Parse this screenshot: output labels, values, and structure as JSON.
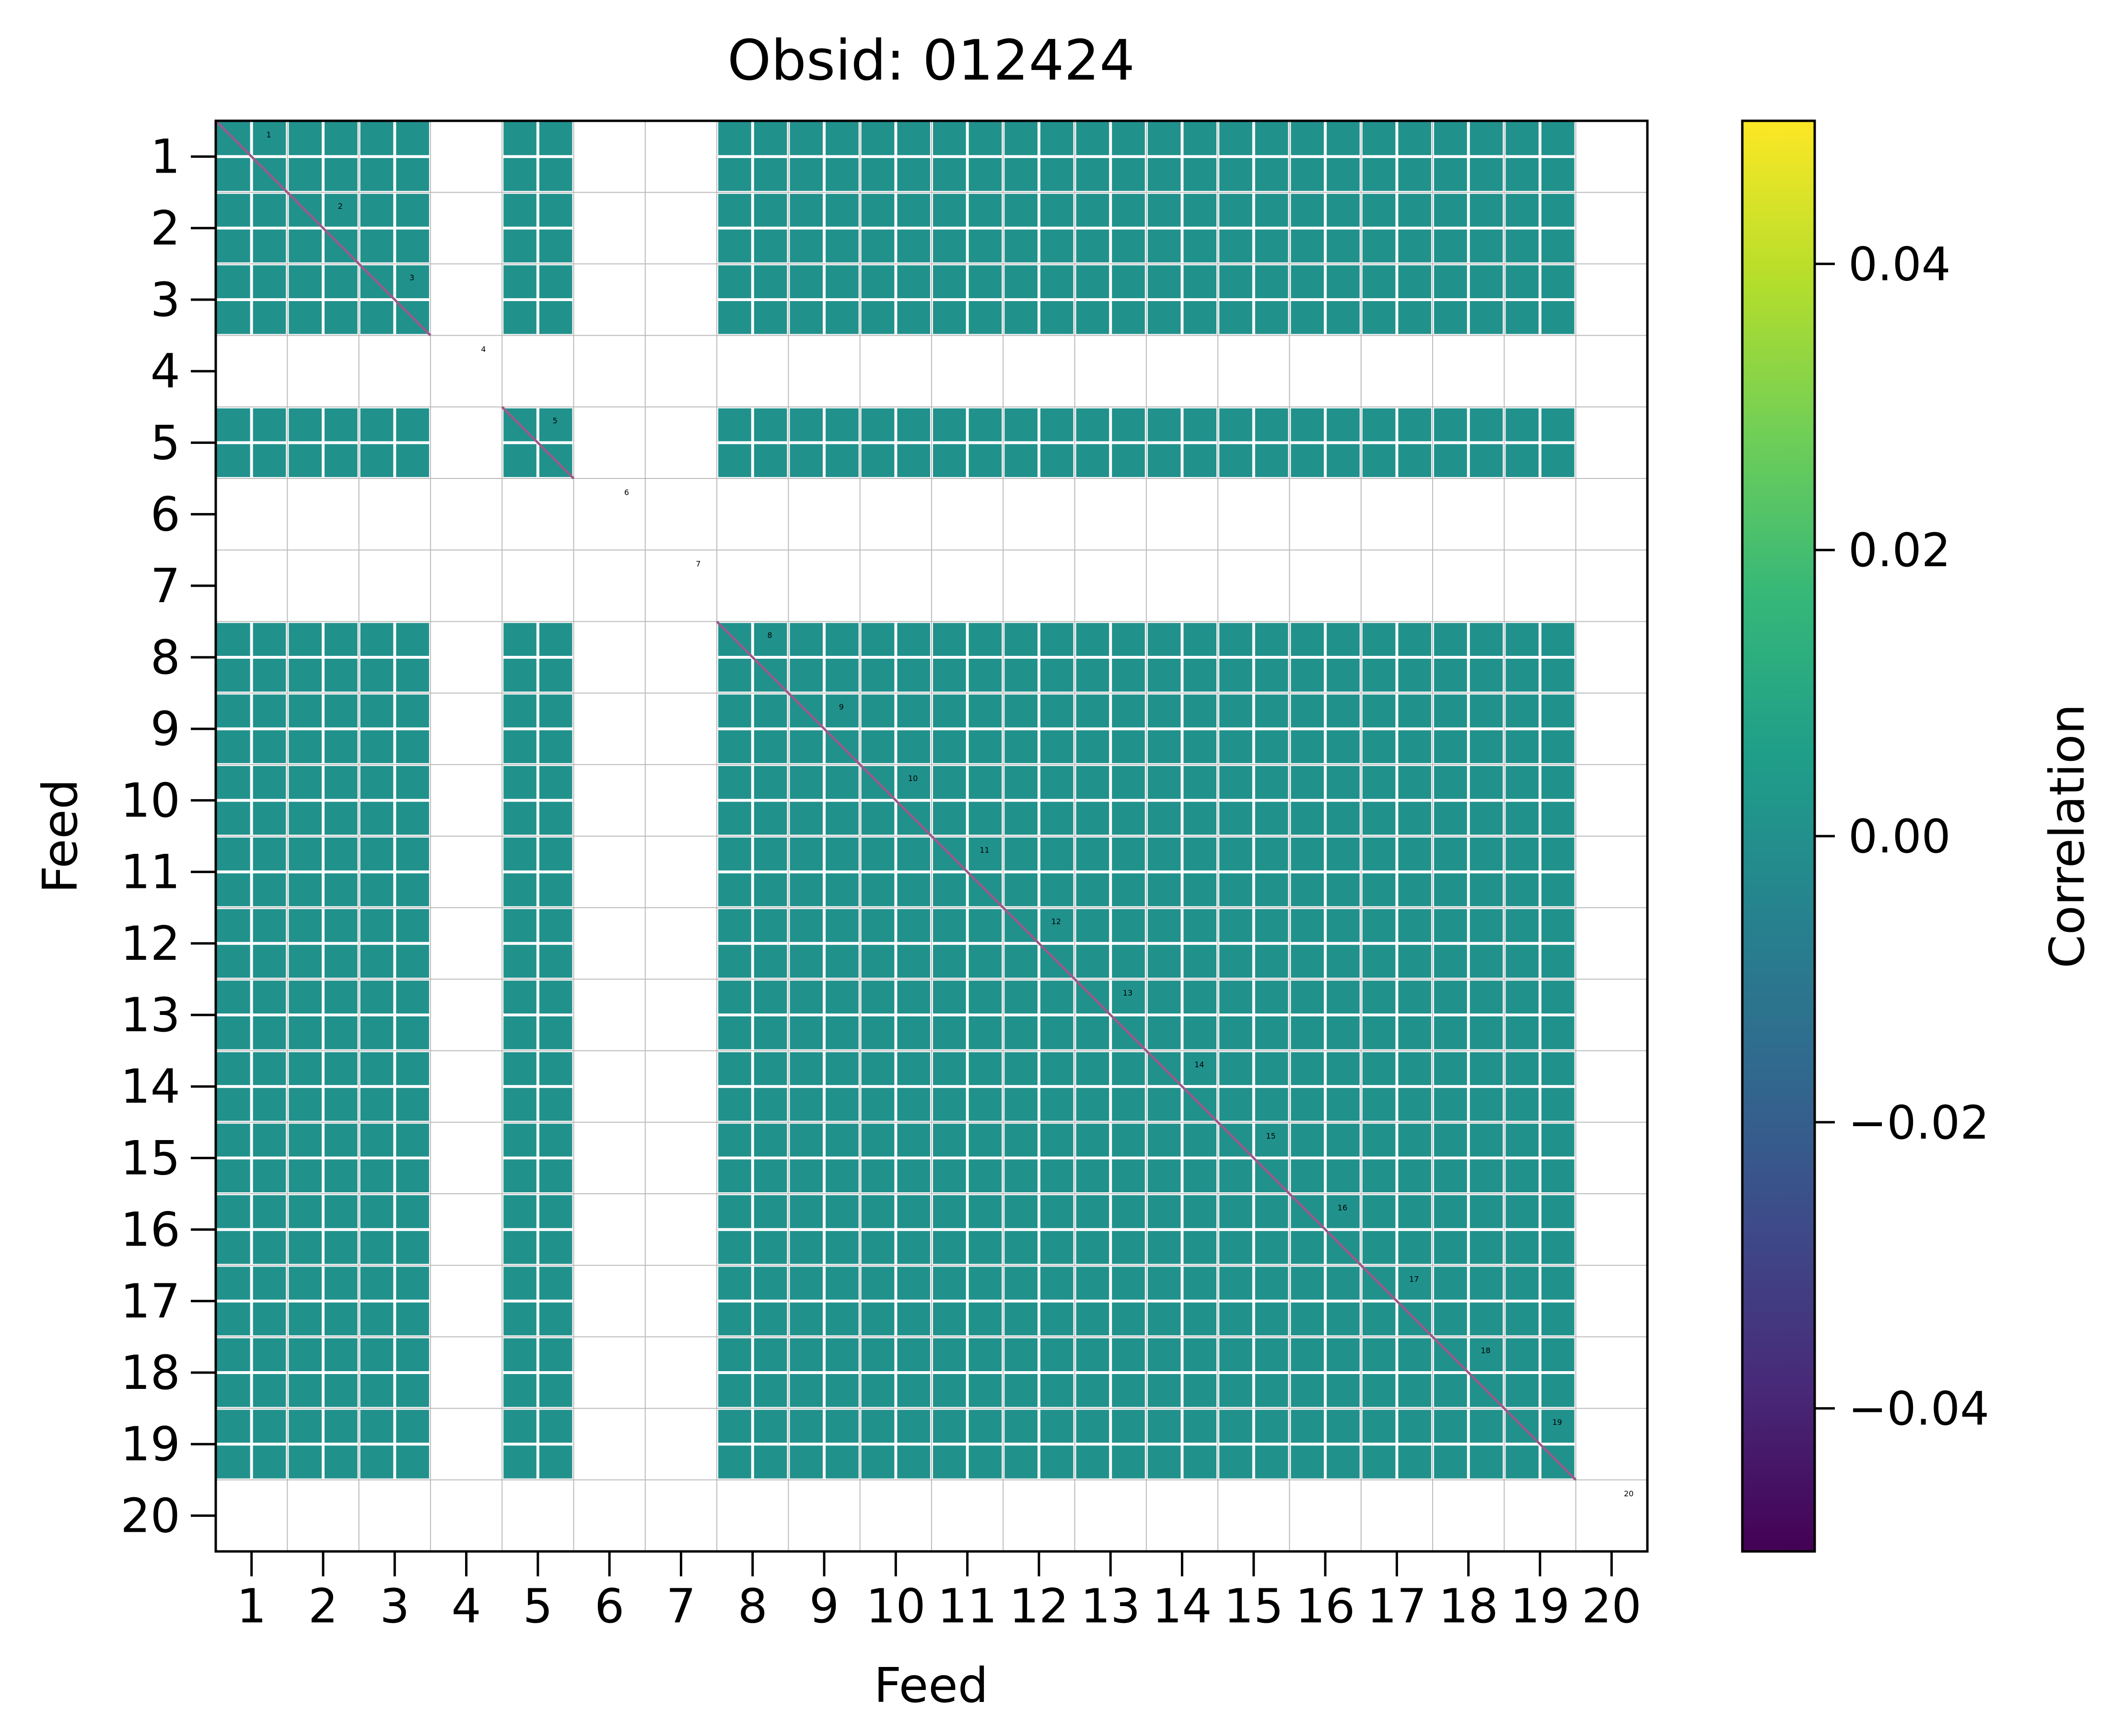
{
  "chart_data": {
    "type": "heatmap",
    "title": "Obsid: 012424",
    "xlabel": "Feed",
    "ylabel": "Feed",
    "x_ticks": [
      "1",
      "2",
      "3",
      "4",
      "5",
      "6",
      "7",
      "8",
      "9",
      "10",
      "11",
      "12",
      "13",
      "14",
      "15",
      "16",
      "17",
      "18",
      "19",
      "20"
    ],
    "y_ticks": [
      "1",
      "2",
      "3",
      "4",
      "5",
      "6",
      "7",
      "8",
      "9",
      "10",
      "11",
      "12",
      "13",
      "14",
      "15",
      "16",
      "17",
      "18",
      "19",
      "20"
    ],
    "feeds": [
      1,
      2,
      3,
      4,
      5,
      6,
      7,
      8,
      9,
      10,
      11,
      12,
      13,
      14,
      15,
      16,
      17,
      18,
      19,
      20
    ],
    "sub_blocks_per_feed": 2,
    "diagonal_labels": [
      "1",
      "2",
      "3",
      "4",
      "5",
      "6",
      "7",
      "8",
      "9",
      "10",
      "11",
      "12",
      "13",
      "14",
      "15",
      "16",
      "17",
      "18",
      "19",
      "20"
    ],
    "masked_feeds": [
      4,
      6,
      7,
      20
    ],
    "row_partial_feeds": [
      8,
      9,
      10
    ],
    "col_partial_feeds": [
      8,
      9,
      10
    ],
    "dominant_value": 0.0,
    "colorbar": {
      "label": "Correlation",
      "min": -0.05,
      "max": 0.05,
      "ticks": [
        0.04,
        0.02,
        0.0,
        -0.02,
        -0.04
      ],
      "tick_labels": [
        "0.04",
        "0.02",
        "0.00",
        "−0.02",
        "−0.04"
      ],
      "colormap": "viridis",
      "colormap_stops": [
        "#440154",
        "#482878",
        "#3e4989",
        "#31688e",
        "#26828e",
        "#1f9e89",
        "#35b779",
        "#6ece58",
        "#b5de2b",
        "#fde725"
      ],
      "zero_color": "#21918c"
    },
    "colors": {
      "cell_fill": "#21918c",
      "grid_line": "#ffffff",
      "feed_grid": "#bbbbbb",
      "diagonal": "#9a5a8a",
      "background": "#ffffff"
    }
  }
}
